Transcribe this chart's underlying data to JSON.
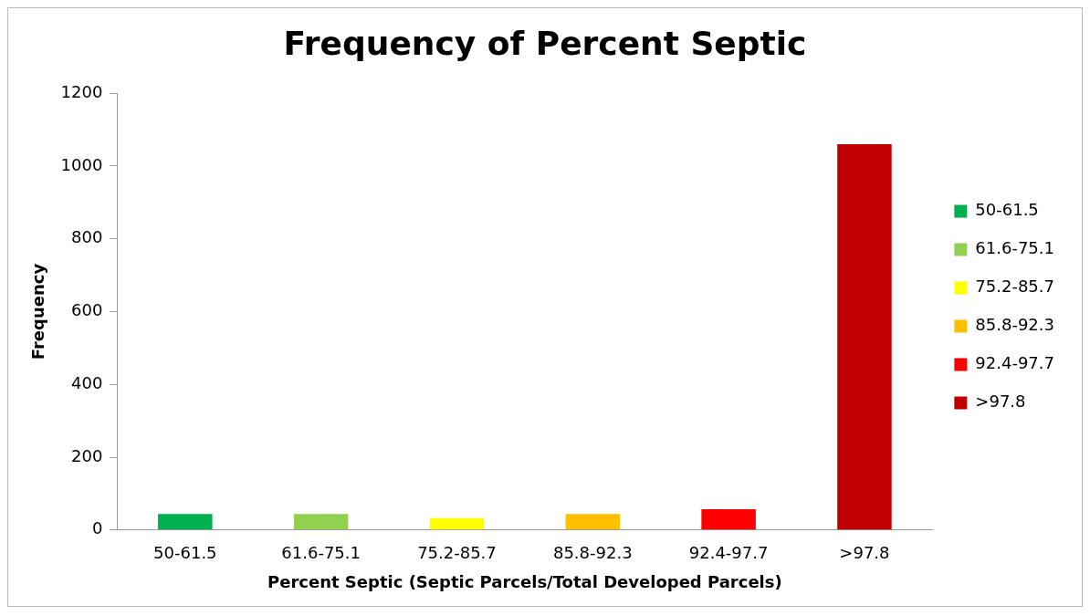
{
  "chart_data": {
    "type": "bar",
    "title": "Frequency of Percent Septic",
    "xlabel": "Percent Septic (Septic Parcels/Total Developed Parcels)",
    "ylabel": "Frequency",
    "categories": [
      "50-61.5",
      "61.6-75.1",
      "75.2-85.7",
      "85.8-92.3",
      "92.4-97.7",
      ">97.8"
    ],
    "series": [
      {
        "name": "50-61.5",
        "color": "#00b050",
        "values": [
          44,
          null,
          null,
          null,
          null,
          null
        ]
      },
      {
        "name": "61.6-75.1",
        "color": "#92d050",
        "values": [
          null,
          44,
          null,
          null,
          null,
          null
        ]
      },
      {
        "name": "75.2-85.7",
        "color": "#ffff00",
        "values": [
          null,
          null,
          33,
          null,
          null,
          null
        ]
      },
      {
        "name": "85.8-92.3",
        "color": "#ffc000",
        "values": [
          null,
          null,
          null,
          44,
          null,
          null
        ]
      },
      {
        "name": "92.4-97.7",
        "color": "#ff0000",
        "values": [
          null,
          null,
          null,
          null,
          57,
          null
        ]
      },
      {
        "name": ">97.8",
        "color": "#c00000",
        "values": [
          null,
          null,
          null,
          null,
          null,
          1060
        ]
      }
    ],
    "ylim": [
      0,
      1200
    ],
    "yticks": [
      0,
      200,
      400,
      600,
      800,
      1000,
      1200
    ],
    "grid": false,
    "legend": "right"
  }
}
